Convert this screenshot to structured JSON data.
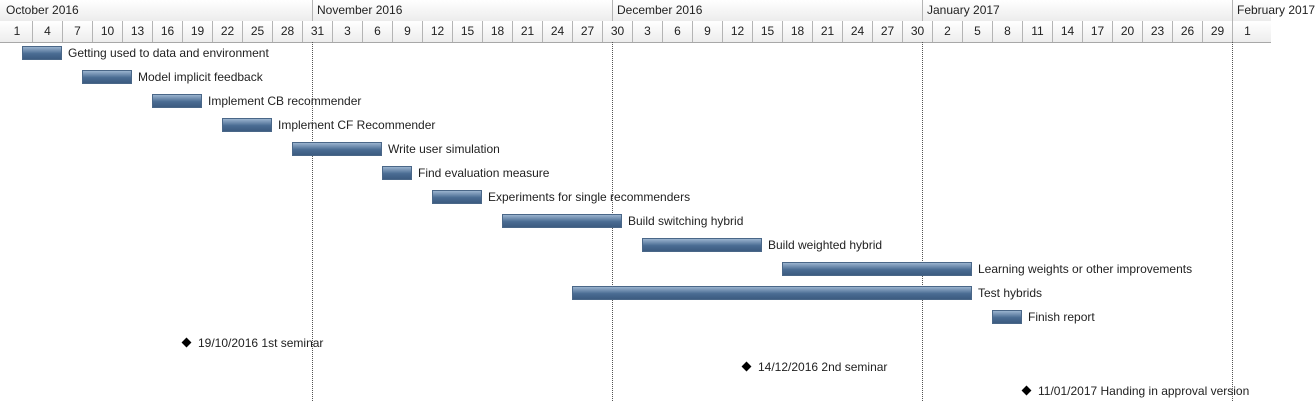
{
  "timeline": {
    "start_date": "2016-10-01",
    "months": [
      {
        "label": "October 2016",
        "start": "2016-10-01"
      },
      {
        "label": "November 2016",
        "start": "2016-11-01"
      },
      {
        "label": "December 2016",
        "start": "2016-12-01"
      },
      {
        "label": "January 2017",
        "start": "2017-01-01"
      },
      {
        "label": "February 2017",
        "start": "2017-02-01"
      }
    ],
    "day_ticks": [
      {
        "label": "1",
        "date": "2016-10-01"
      },
      {
        "label": "4",
        "date": "2016-10-04"
      },
      {
        "label": "7",
        "date": "2016-10-07"
      },
      {
        "label": "10",
        "date": "2016-10-10"
      },
      {
        "label": "13",
        "date": "2016-10-13"
      },
      {
        "label": "16",
        "date": "2016-10-16"
      },
      {
        "label": "19",
        "date": "2016-10-19"
      },
      {
        "label": "22",
        "date": "2016-10-22"
      },
      {
        "label": "25",
        "date": "2016-10-25"
      },
      {
        "label": "28",
        "date": "2016-10-28"
      },
      {
        "label": "31",
        "date": "2016-10-31"
      },
      {
        "label": "3",
        "date": "2016-11-03"
      },
      {
        "label": "6",
        "date": "2016-11-06"
      },
      {
        "label": "9",
        "date": "2016-11-09"
      },
      {
        "label": "12",
        "date": "2016-11-12"
      },
      {
        "label": "15",
        "date": "2016-11-15"
      },
      {
        "label": "18",
        "date": "2016-11-18"
      },
      {
        "label": "21",
        "date": "2016-11-21"
      },
      {
        "label": "24",
        "date": "2016-11-24"
      },
      {
        "label": "27",
        "date": "2016-11-27"
      },
      {
        "label": "30",
        "date": "2016-11-30"
      },
      {
        "label": "3",
        "date": "2016-12-03"
      },
      {
        "label": "6",
        "date": "2016-12-06"
      },
      {
        "label": "9",
        "date": "2016-12-09"
      },
      {
        "label": "12",
        "date": "2016-12-12"
      },
      {
        "label": "15",
        "date": "2016-12-15"
      },
      {
        "label": "18",
        "date": "2016-12-18"
      },
      {
        "label": "21",
        "date": "2016-12-21"
      },
      {
        "label": "24",
        "date": "2016-12-24"
      },
      {
        "label": "27",
        "date": "2016-12-27"
      },
      {
        "label": "30",
        "date": "2016-12-30"
      },
      {
        "label": "2",
        "date": "2017-01-02"
      },
      {
        "label": "5",
        "date": "2017-01-05"
      },
      {
        "label": "8",
        "date": "2017-01-08"
      },
      {
        "label": "11",
        "date": "2017-01-11"
      },
      {
        "label": "14",
        "date": "2017-01-14"
      },
      {
        "label": "17",
        "date": "2017-01-17"
      },
      {
        "label": "20",
        "date": "2017-01-20"
      },
      {
        "label": "23",
        "date": "2017-01-23"
      },
      {
        "label": "26",
        "date": "2017-01-26"
      },
      {
        "label": "29",
        "date": "2017-01-29"
      },
      {
        "label": "1",
        "date": "2017-02-01"
      }
    ]
  },
  "tasks": [
    {
      "name": "Getting used to data and environment",
      "start": "2016-10-03",
      "end": "2016-10-06"
    },
    {
      "name": "Model implicit feedback",
      "start": "2016-10-09",
      "end": "2016-10-13"
    },
    {
      "name": "Implement CB recommender",
      "start": "2016-10-16",
      "end": "2016-10-20"
    },
    {
      "name": "Implement CF Recommender",
      "start": "2016-10-23",
      "end": "2016-10-27"
    },
    {
      "name": "Write user simulation",
      "start": "2016-10-30",
      "end": "2016-11-07"
    },
    {
      "name": "Find evaluation measure",
      "start": "2016-11-08",
      "end": "2016-11-10"
    },
    {
      "name": "Experiments for single recommenders",
      "start": "2016-11-13",
      "end": "2016-11-17"
    },
    {
      "name": "Build switching hybrid",
      "start": "2016-11-20",
      "end": "2016-12-01"
    },
    {
      "name": "Build weighted hybrid",
      "start": "2016-12-04",
      "end": "2016-12-15"
    },
    {
      "name": "Learning weights or other improvements",
      "start": "2016-12-18",
      "end": "2017-01-05"
    },
    {
      "name": "Test hybrids",
      "start": "2016-11-27",
      "end": "2017-01-05"
    },
    {
      "name": "Finish report",
      "start": "2017-01-08",
      "end": "2017-01-10"
    }
  ],
  "milestones": [
    {
      "label": "19/10/2016 1st seminar",
      "date": "2016-10-19"
    },
    {
      "label": "14/12/2016 2nd seminar",
      "date": "2016-12-14"
    },
    {
      "label": "11/01/2017 Handing in approval version",
      "date": "2017-01-11"
    }
  ],
  "colors": {
    "bar": "#4a6c93",
    "milestone": "#000000",
    "month_divider": "#555555"
  }
}
